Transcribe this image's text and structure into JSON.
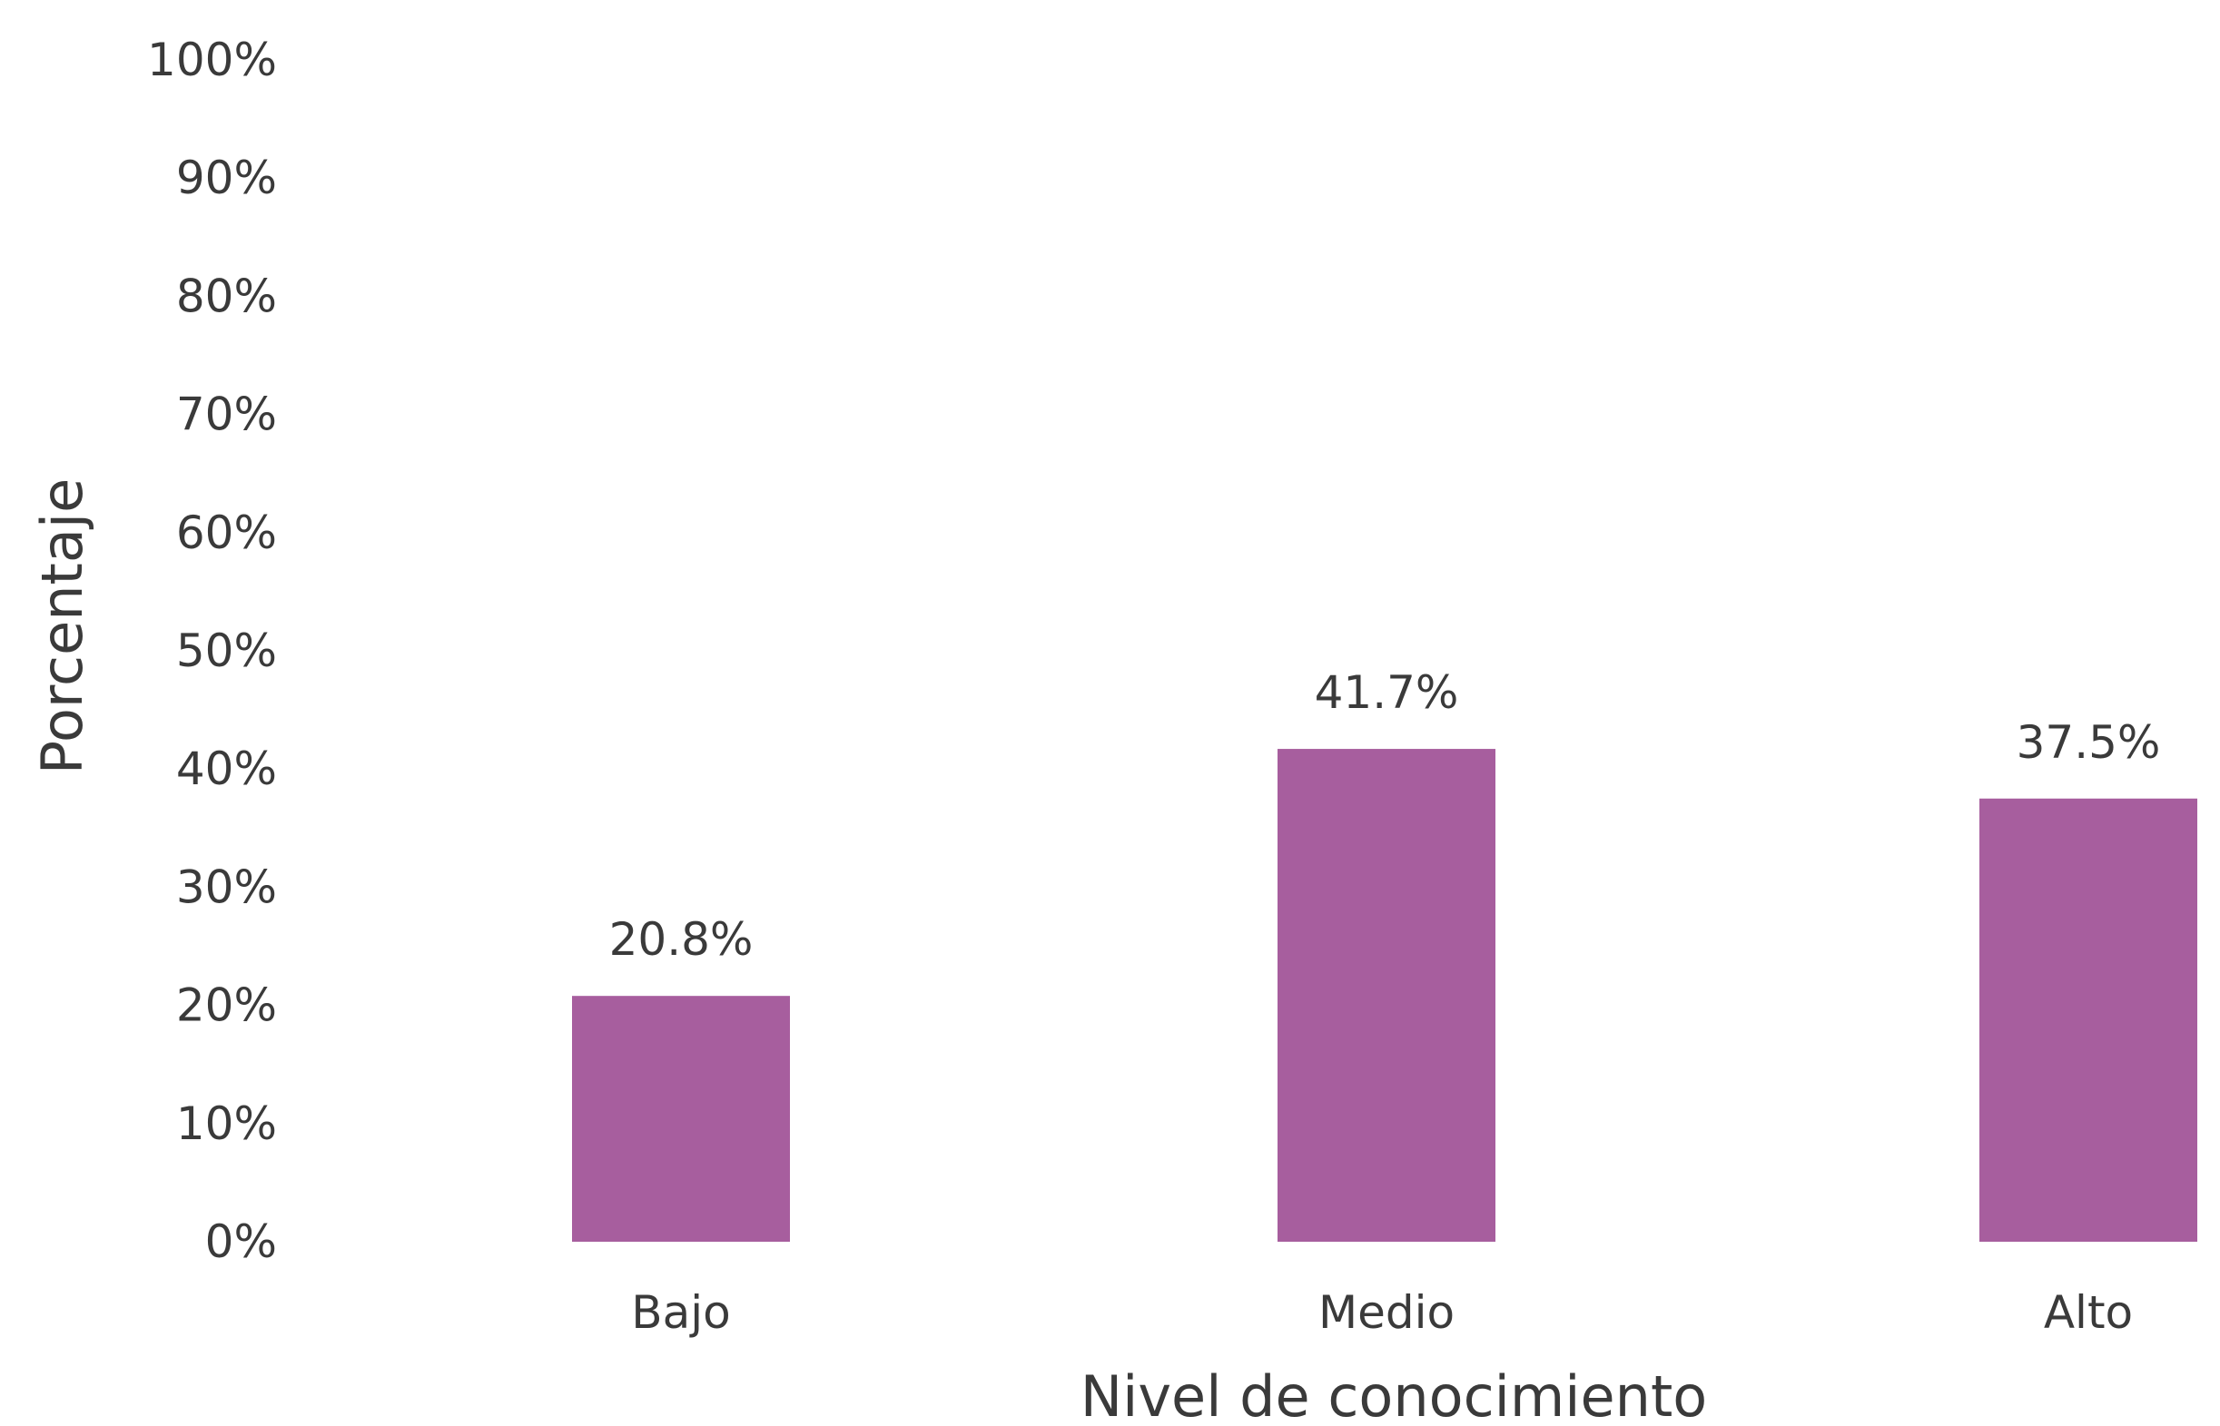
{
  "chart_data": {
    "type": "bar",
    "title": "",
    "xlabel": "Nivel de conocimiento",
    "ylabel": "Porcentaje",
    "categories": [
      "Bajo",
      "Medio",
      "Alto"
    ],
    "values": [
      20.8,
      41.7,
      37.5
    ],
    "value_labels": [
      "20.8%",
      "41.7%",
      "37.5%"
    ],
    "ylim": [
      0,
      100
    ],
    "yticks": [
      0,
      10,
      20,
      30,
      40,
      50,
      60,
      70,
      80,
      90,
      100
    ],
    "ytick_labels": [
      "0%",
      "10%",
      "20%",
      "30%",
      "40%",
      "50%",
      "60%",
      "70%",
      "80%",
      "90%",
      "100%"
    ],
    "grid": false,
    "legend": "none",
    "bar_color": "#a75e9e"
  }
}
